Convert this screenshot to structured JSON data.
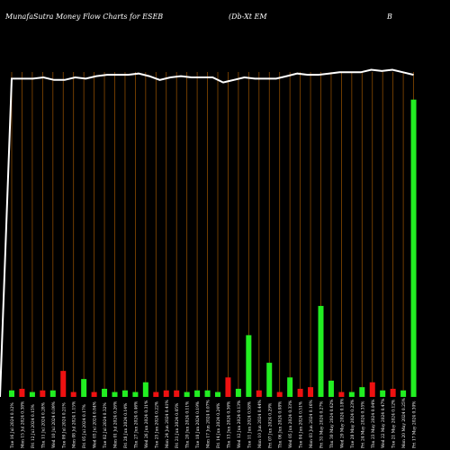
{
  "header": {
    "title": "MunafaSutra  Money Flow  Charts for ESEB",
    "subtitle": "(Db-Xt EM",
    "right": "B"
  },
  "chart_data": {
    "type": "bar",
    "title": "MunafaSutra  Money Flow  Charts for ESEB",
    "colors": {
      "up": "#22ee22",
      "down": "#ee1111",
      "price_line": "#ffffff",
      "grid": "#8a4a00",
      "background": "#000000"
    },
    "categories": [
      "Tue 16 Jul 2024",
      "Mon 15 Jul 2024",
      "Fri 12 Jul 2024",
      "Thu 11 Jul 2024",
      "Wed 10 Jul 2024",
      "Tue 09 Jul 2024",
      "Mon 08 Jul 2024",
      "Fri 05 Jul 2024",
      "Wed 03 Jul 2024",
      "Tue 02 Jul 2024",
      "Mon 01 Jul 2024",
      "Fri 28 Jun 2024",
      "Thu 27 Jun 2024",
      "Wed 26 Jun 2024",
      "Tue 25 Jun 2024",
      "Mon 24 Jun 2024",
      "Fri 21 Jun 2024",
      "Thu 20 Jun 2024",
      "Tue 18 Jun 2024",
      "Mon 17 Jun 2024",
      "Fri 14 Jun 2024",
      "Thu 13 Jun 2024",
      "Wed 12 Jun 2024",
      "Tue 11 Jun 2024",
      "Mon 10 Jun 2024",
      "Fri 07 Jun 2024",
      "Thu 06 Jun 2024",
      "Wed 05 Jun 2024",
      "Tue 04 Jun 2024",
      "Mon 03 Jun 2024",
      "Fri 31 May 2024",
      "Thu 30 May 2024",
      "Wed 29 May 2024",
      "Tue 28 May 2024",
      "Fri 24 May 2024",
      "Thu 23 May 2024",
      "Wed 22 May 2024",
      "Tue 21 May 2024",
      "Mon 20 May 2024",
      "Fri 17 May 2024"
    ],
    "x_labels": [
      "Tue 16 Jul 2024 0.12%",
      "Mon 15 Jul 2024 0.38%",
      "Fri 12 Jul 2024 0.15%",
      "Thu 11 Jul 2024 0.28%",
      "Wed 10 Jul 2024 0.09%",
      "Tue 09 Jul 2024 0.21%",
      "Mon 08 Jul 2024 1.15%",
      "Fri 05 Jul 2024 0.17%",
      "Wed 03 Jul 2024 0.84%",
      "Tue 02 Jul 2024 0.32%",
      "Mon 01 Jul 2024 0.26%",
      "Fri 28 Jun 2024 0.14%",
      "Thu 27 Jun 2024 0.46%",
      "Wed 26 Jun 2024 0.31%",
      "Tue 25 Jun 2024 0.22%",
      "Mon 24 Jun 2024 0.41%",
      "Fri 21 Jun 2024 0.05%",
      "Thu 20 Jun 2024 0.11%",
      "Tue 18 Jun 2024 0.19%",
      "Mon 17 Jun 2024 0.07%",
      "Fri 14 Jun 2024 0.24%",
      "Thu 13 Jun 2024 0.36%",
      "Wed 12 Jun 2024 0.13%",
      "Tue 11 Jun 2024 0.58%",
      "Mon 10 Jun 2024 0.44%",
      "Fri 07 Jun 2024 0.29%",
      "Thu 06 Jun 2024 0.08%",
      "Wed 05 Jun 2024 0.33%",
      "Tue 04 Jun 2024 0.51%",
      "Mon 03 Jun 2024 0.16%",
      "Fri 31 May 2024 0.27%",
      "Thu 30 May 2024 0.62%",
      "Wed 29 May 2024 0.18%",
      "Tue 28 May 2024 0.23%",
      "Fri 24 May 2024 0.35%",
      "Thu 23 May 2024 0.04%",
      "Wed 22 May 2024 0.47%",
      "Tue 21 May 2024 0.12%",
      "Mon 20 May 2024 0.25%",
      "Fri 17 May 2024 0.30%"
    ],
    "money_flow": {
      "colors": [
        "g",
        "r",
        "g",
        "r",
        "g",
        "r",
        "r",
        "g",
        "r",
        "g",
        "g",
        "g",
        "g",
        "g",
        "r",
        "r",
        "r",
        "g",
        "g",
        "g",
        "g",
        "r",
        "g",
        "g",
        "r",
        "g",
        "r",
        "g",
        "r",
        "r",
        "g",
        "g",
        "r",
        "g",
        "g",
        "r",
        "g",
        "r",
        "g",
        "g"
      ],
      "values": [
        4,
        5,
        3,
        4,
        4,
        16,
        3,
        11,
        3,
        5,
        3,
        4,
        3,
        9,
        3,
        4,
        4,
        3,
        4,
        4,
        3,
        12,
        5,
        38,
        4,
        21,
        3,
        12,
        5,
        6,
        56,
        10,
        3,
        3,
        6,
        9,
        4,
        5,
        4,
        183
      ]
    },
    "price": {
      "values": [
        0,
        252,
        252,
        252,
        253,
        251,
        251,
        253,
        252,
        254,
        255,
        255,
        255,
        256,
        254,
        251,
        253,
        254,
        253,
        253,
        253,
        249,
        251,
        253,
        252,
        252,
        252,
        254,
        256,
        255,
        255,
        256,
        257,
        257,
        257,
        259,
        258,
        259,
        257,
        255
      ],
      "ylim": [
        0,
        300
      ]
    },
    "ylim": [
      0,
      200
    ],
    "grid": true
  }
}
